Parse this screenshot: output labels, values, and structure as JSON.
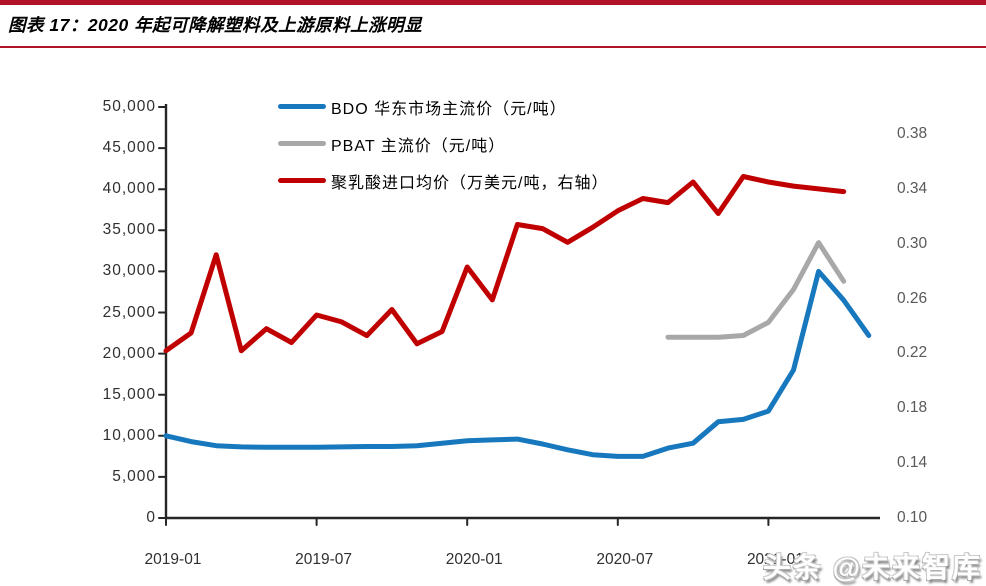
{
  "header": {
    "title": "图表 17：2020 年起可降解塑料及上游原料上涨明显"
  },
  "watermark": "头条 @未来智库",
  "colors": {
    "header_line": "#B01228",
    "axis": "#262626",
    "bdo_blue": "#1878BE",
    "pbat_gray": "#A8A8A8",
    "pla_red": "#C00000"
  },
  "chart_data": {
    "type": "line",
    "title": "图表 17：2020 年起可降解塑料及上游原料上涨明显",
    "grid": false,
    "legend_position": "top-left",
    "x": [
      "2019-01",
      "2019-02",
      "2019-03",
      "2019-04",
      "2019-05",
      "2019-06",
      "2019-07",
      "2019-08",
      "2019-09",
      "2019-10",
      "2019-11",
      "2019-12",
      "2020-01",
      "2020-02",
      "2020-03",
      "2020-04",
      "2020-05",
      "2020-06",
      "2020-07",
      "2020-08",
      "2020-09",
      "2020-10",
      "2020-11",
      "2020-12",
      "2021-01",
      "2021-02",
      "2021-03",
      "2021-04",
      "2021-05"
    ],
    "x_ticks": [
      {
        "label": "2019-01",
        "index": 0
      },
      {
        "label": "2019-07",
        "index": 6
      },
      {
        "label": "2020-01",
        "index": 12
      },
      {
        "label": "2020-07",
        "index": 18
      },
      {
        "label": "2021-01",
        "index": 24
      }
    ],
    "left_axis": {
      "min": 0,
      "max": 50000,
      "step": 5000,
      "ticks": [
        {
          "label": "50,000",
          "value": 50000
        },
        {
          "label": "45,000",
          "value": 45000
        },
        {
          "label": "40,000",
          "value": 40000
        },
        {
          "label": "35,000",
          "value": 35000
        },
        {
          "label": "30,000",
          "value": 30000
        },
        {
          "label": "25,000",
          "value": 25000
        },
        {
          "label": "20,000",
          "value": 20000
        },
        {
          "label": "15,000",
          "value": 15000
        },
        {
          "label": "10,000",
          "value": 10000
        },
        {
          "label": "5,000",
          "value": 5000
        },
        {
          "label": "0",
          "value": 0
        }
      ]
    },
    "right_axis": {
      "min": 0.1,
      "max": 0.38,
      "step": 0.04,
      "ticks": [
        {
          "label": "0.38",
          "value": 0.38
        },
        {
          "label": "0.34",
          "value": 0.34
        },
        {
          "label": "0.30",
          "value": 0.3
        },
        {
          "label": "0.26",
          "value": 0.26
        },
        {
          "label": "0.22",
          "value": 0.22
        },
        {
          "label": "0.18",
          "value": 0.18
        },
        {
          "label": "0.14",
          "value": 0.14
        },
        {
          "label": "0.10",
          "value": 0.1
        }
      ]
    },
    "series": [
      {
        "name": "BDO 华东市场主流价（元/吨）",
        "color": "#1878BE",
        "axis": "left",
        "values": [
          10000,
          9300,
          8800,
          8650,
          8600,
          8600,
          8600,
          8650,
          8700,
          8700,
          8800,
          9100,
          9400,
          9500,
          9600,
          9000,
          8300,
          7700,
          7500,
          7500,
          8500,
          9100,
          11700,
          12000,
          13000,
          18000,
          30000,
          26500,
          22200
        ]
      },
      {
        "name": "PBAT 主流价（元/吨）",
        "color": "#A8A8A8",
        "axis": "left",
        "values": [
          null,
          null,
          null,
          null,
          null,
          null,
          null,
          null,
          null,
          null,
          null,
          null,
          null,
          null,
          null,
          null,
          null,
          null,
          null,
          null,
          22000,
          22000,
          22000,
          22200,
          23800,
          27800,
          33500,
          28800,
          null
        ]
      },
      {
        "name": "聚乳酸进口均价（万美元/吨，右轴）",
        "color": "#C00000",
        "axis": "right",
        "values": [
          0.222,
          0.235,
          0.292,
          0.222,
          0.238,
          0.228,
          0.248,
          0.243,
          0.233,
          0.252,
          0.227,
          0.236,
          0.283,
          0.259,
          0.314,
          0.311,
          0.301,
          0.312,
          0.324,
          0.333,
          0.33,
          0.345,
          0.322,
          0.349,
          0.345,
          0.342,
          0.34,
          0.338,
          null
        ]
      }
    ]
  }
}
